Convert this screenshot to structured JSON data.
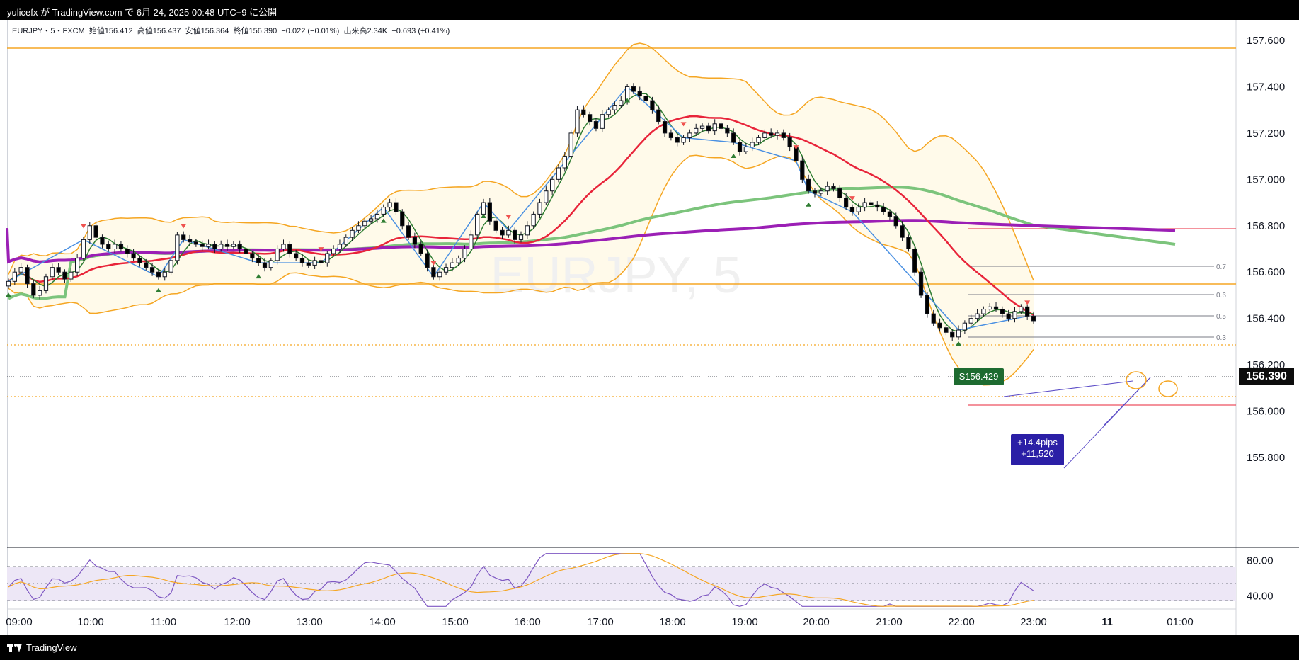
{
  "header": {
    "caption": "yulicefx が TradingView.com で 6月 24, 2025 00:48 UTC+9 に公開"
  },
  "legend": {
    "symbol": "EURJPY・5・FXCM",
    "open": "始値156.412",
    "high": "高値156.437",
    "low": "安値156.364",
    "close": "終値156.390",
    "change": "−0.022 (−0.01%)",
    "volume": "出来高2.34K",
    "vol_change": "+0.693 (+0.41%)"
  },
  "watermark": "EURJPY, 5",
  "price_tag": "156.390",
  "s_tag": "S156.429",
  "pips_box": {
    "line1": "+14.4pips",
    "line2": "+11,520"
  },
  "fib_labels": [
    "0.7",
    "0.6",
    "0.5",
    "0.3"
  ],
  "footer": {
    "brand": "TradingView"
  },
  "colors": {
    "bull": "#ffffff",
    "bear": "#000000",
    "ma_red": "#e8243a",
    "ma_green": "#7cc47c",
    "ma_purple": "#9b1fb5",
    "bb": "#f5a623",
    "zigzag": "#4a90e2",
    "rsi": "#7e57c2",
    "rsi_signal": "#f5a623"
  },
  "chart_data": [
    {
      "type": "candlestick",
      "title": "EURJPY・5・FXCM",
      "y_ticks": [
        "157.600",
        "157.400",
        "157.200",
        "157.000",
        "156.800",
        "156.600",
        "156.400",
        "156.200",
        "156.000",
        "155.800"
      ],
      "x_ticks": [
        "09:00",
        "10:00",
        "11:00",
        "12:00",
        "13:00",
        "14:00",
        "15:00",
        "16:00",
        "17:00",
        "18:00",
        "19:00",
        "20:00",
        "21:00",
        "22:00",
        "23:00",
        "11",
        "01:00"
      ],
      "ylim": [
        155.75,
        157.65
      ],
      "close_series": [
        156.56,
        156.6,
        156.62,
        156.55,
        156.5,
        156.52,
        156.58,
        156.62,
        156.6,
        156.57,
        156.6,
        156.66,
        156.74,
        156.8,
        156.75,
        156.72,
        156.7,
        156.72,
        156.7,
        156.68,
        156.66,
        156.64,
        156.62,
        156.6,
        156.58,
        156.6,
        156.65,
        156.76,
        156.74,
        156.73,
        156.72,
        156.71,
        156.72,
        156.7,
        156.72,
        156.71,
        156.72,
        156.7,
        156.68,
        156.66,
        156.64,
        156.62,
        156.65,
        156.7,
        156.72,
        156.68,
        156.66,
        156.64,
        156.63,
        156.65,
        156.64,
        156.68,
        156.7,
        156.72,
        156.75,
        156.78,
        156.8,
        156.82,
        156.83,
        156.85,
        156.88,
        156.9,
        156.86,
        156.8,
        156.75,
        156.72,
        156.68,
        156.62,
        156.58,
        156.6,
        156.62,
        156.64,
        156.66,
        156.7,
        156.76,
        156.85,
        156.9,
        156.82,
        156.78,
        156.76,
        156.78,
        156.74,
        156.76,
        156.8,
        156.85,
        156.9,
        156.95,
        157.0,
        157.05,
        157.1,
        157.2,
        157.3,
        157.28,
        157.25,
        157.22,
        157.28,
        157.3,
        157.32,
        157.34,
        157.4,
        157.38,
        157.36,
        157.34,
        157.3,
        157.25,
        157.2,
        157.18,
        157.16,
        157.18,
        157.2,
        157.22,
        157.23,
        157.21,
        157.24,
        157.22,
        157.2,
        157.16,
        157.12,
        157.14,
        157.16,
        157.18,
        157.2,
        157.19,
        157.2,
        157.18,
        157.14,
        157.08,
        157.0,
        156.95,
        156.94,
        156.95,
        156.97,
        156.96,
        156.92,
        156.88,
        156.86,
        156.88,
        156.9,
        156.89,
        156.88,
        156.86,
        156.84,
        156.8,
        156.75,
        156.7,
        156.6,
        156.5,
        156.42,
        156.38,
        156.36,
        156.34,
        156.32,
        156.35,
        156.38,
        156.4,
        156.42,
        156.44,
        156.45,
        156.44,
        156.42,
        156.4,
        156.43,
        156.45,
        156.41,
        156.39
      ],
      "high": 157.42,
      "low": 156.3,
      "last": 156.39,
      "sub_panel": {
        "type": "line",
        "y_ticks": [
          "80.00",
          "40.00"
        ],
        "ylim": [
          25,
          95
        ],
        "levels": [
          70,
          50,
          30
        ]
      }
    }
  ]
}
